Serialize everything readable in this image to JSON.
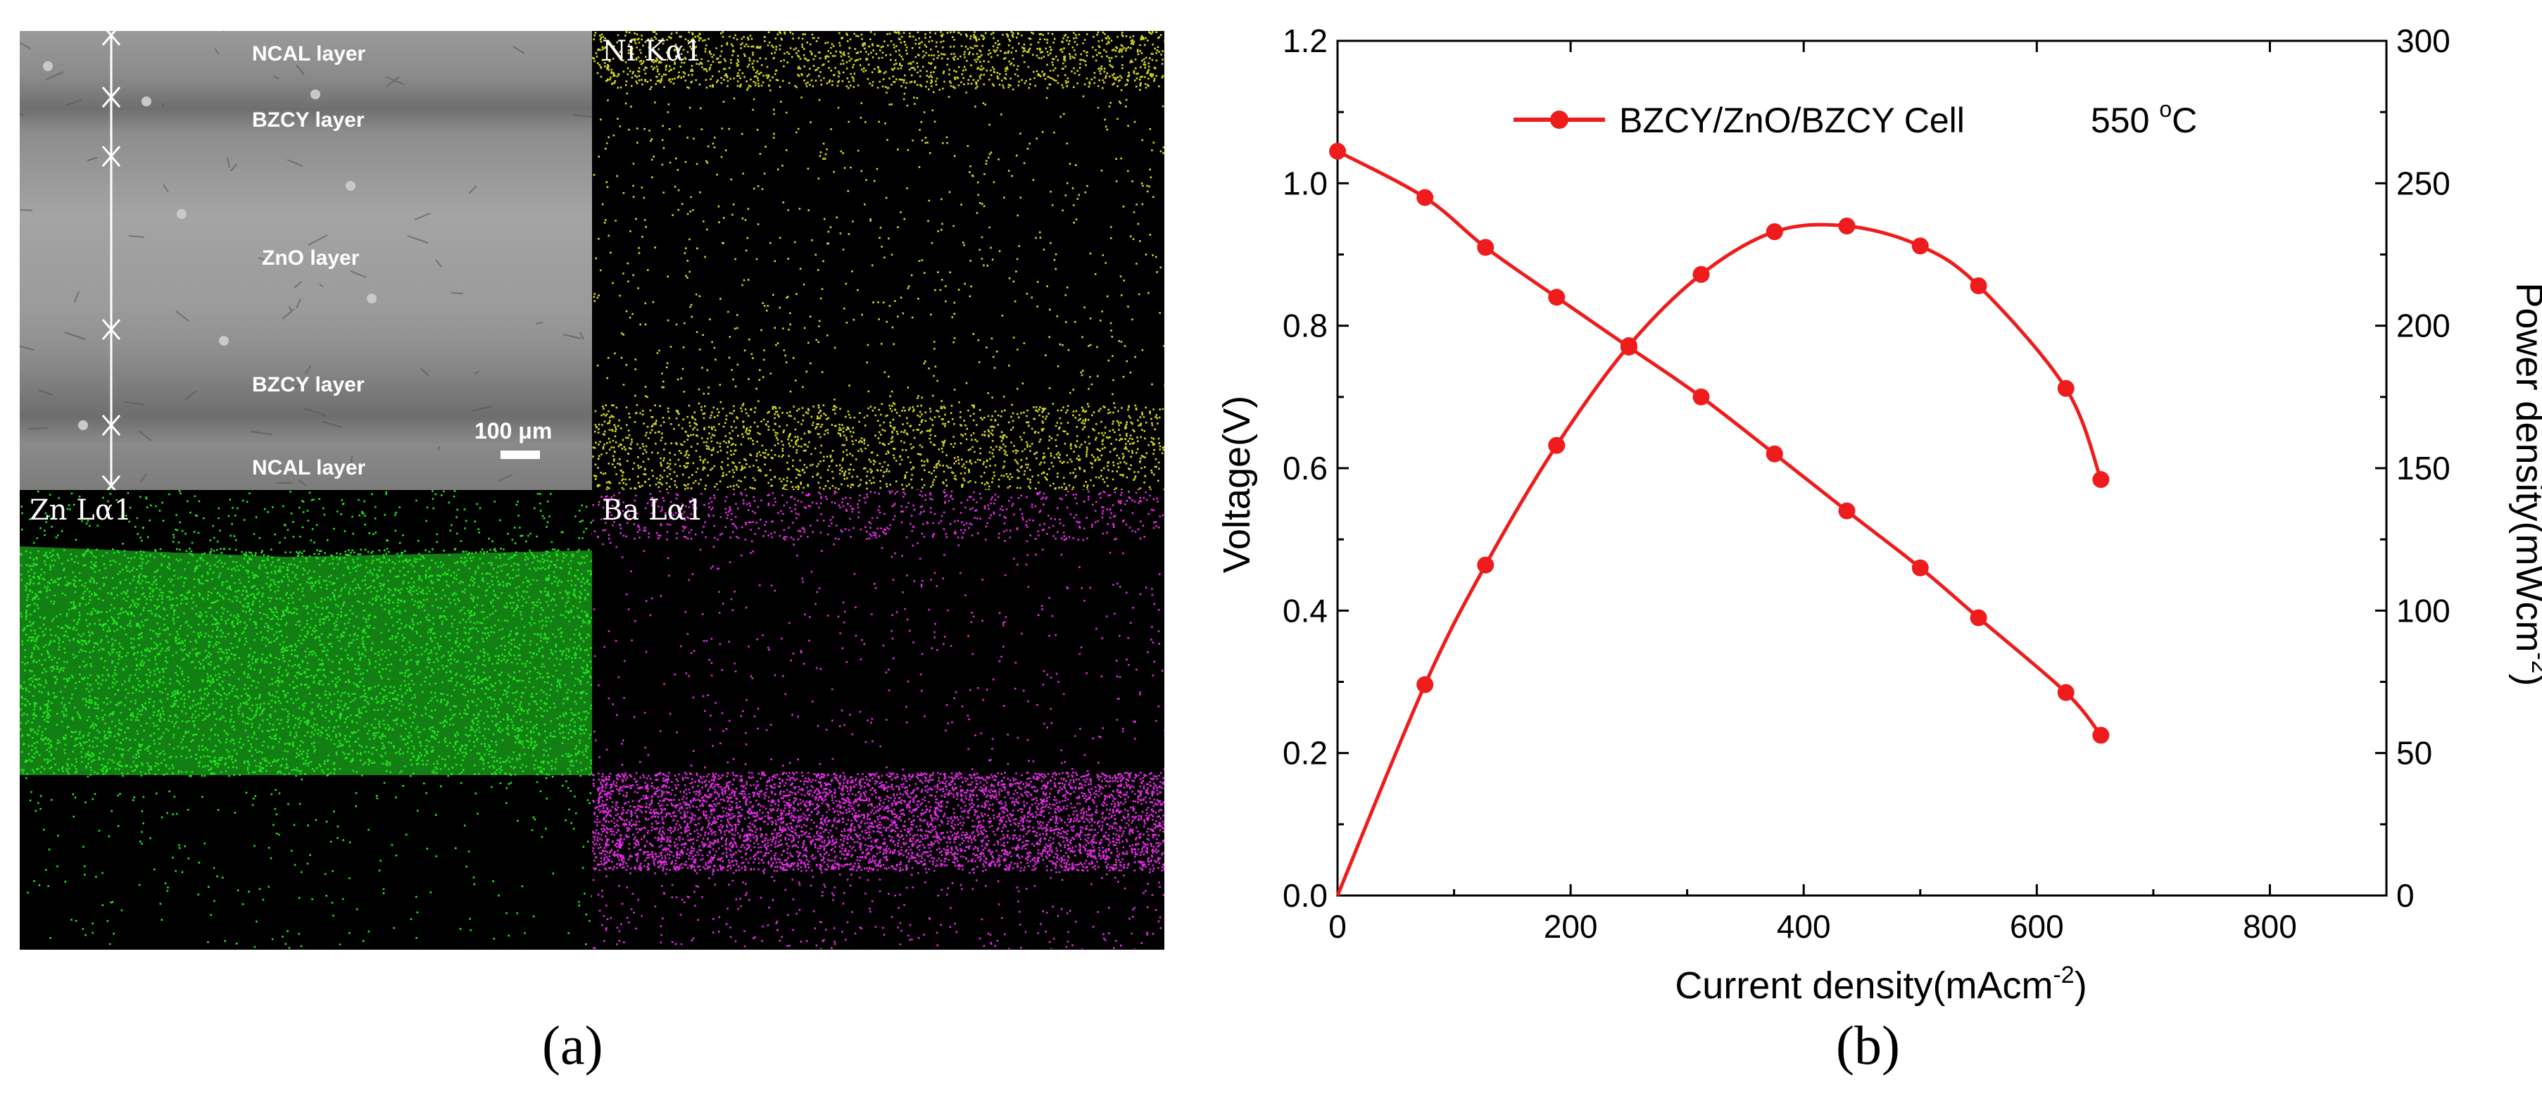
{
  "panel_a": {
    "sem_labels": [
      "NCAL layer",
      "BZCY layer",
      "ZnO layer",
      "BZCY layer",
      "NCAL layer"
    ],
    "scale_bar": "100 μm",
    "maps": [
      {
        "label": "Ni Kα1",
        "color": "#d8d81e"
      },
      {
        "label": "Zn Lα1",
        "color": "#22e622"
      },
      {
        "label": "Ba Lα1",
        "color": "#e22ce2"
      }
    ]
  },
  "captions": [
    "(a)",
    "(b)"
  ],
  "chart_data": {
    "type": "line",
    "xlabel": "Current density(mAcm",
    "xlabel_sup": "-2",
    "xlabel_end": ")",
    "ylabel": "Voltage(V)",
    "y2label": "Power density(mWcm",
    "y2label_sup": "-2",
    "y2label_end": ")",
    "xlim": [
      0,
      900
    ],
    "ylim": [
      0,
      1.2
    ],
    "y2lim": [
      0,
      300
    ],
    "x_ticks": [
      "0",
      "200",
      "400",
      "600",
      "800"
    ],
    "y_ticks": [
      "0.0",
      "0.2",
      "0.4",
      "0.6",
      "0.8",
      "1.0",
      "1.2"
    ],
    "y2_ticks": [
      "0",
      "50",
      "100",
      "150",
      "200",
      "250",
      "300"
    ],
    "legend": {
      "label": "BZCY/ZnO/BZCY Cell",
      "temp": "550 ",
      "temp_sup": "o",
      "temp_end": "C",
      "placement": "top"
    },
    "color": "#ee1c1c",
    "series": [
      {
        "axis": "left",
        "x": [
          0,
          75,
          127,
          188,
          250,
          312,
          375,
          437,
          500,
          550,
          625,
          655
        ],
        "values": [
          1.045,
          0.98,
          0.91,
          0.84,
          0.77,
          0.7,
          0.62,
          0.54,
          0.46,
          0.39,
          0.285,
          0.225
        ]
      },
      {
        "axis": "right",
        "x": [
          0,
          75,
          127,
          188,
          250,
          312,
          375,
          437,
          500,
          550,
          625,
          655
        ],
        "values": [
          0,
          74,
          116,
          158,
          193,
          218,
          233,
          235,
          228,
          214,
          178,
          146
        ]
      }
    ]
  }
}
